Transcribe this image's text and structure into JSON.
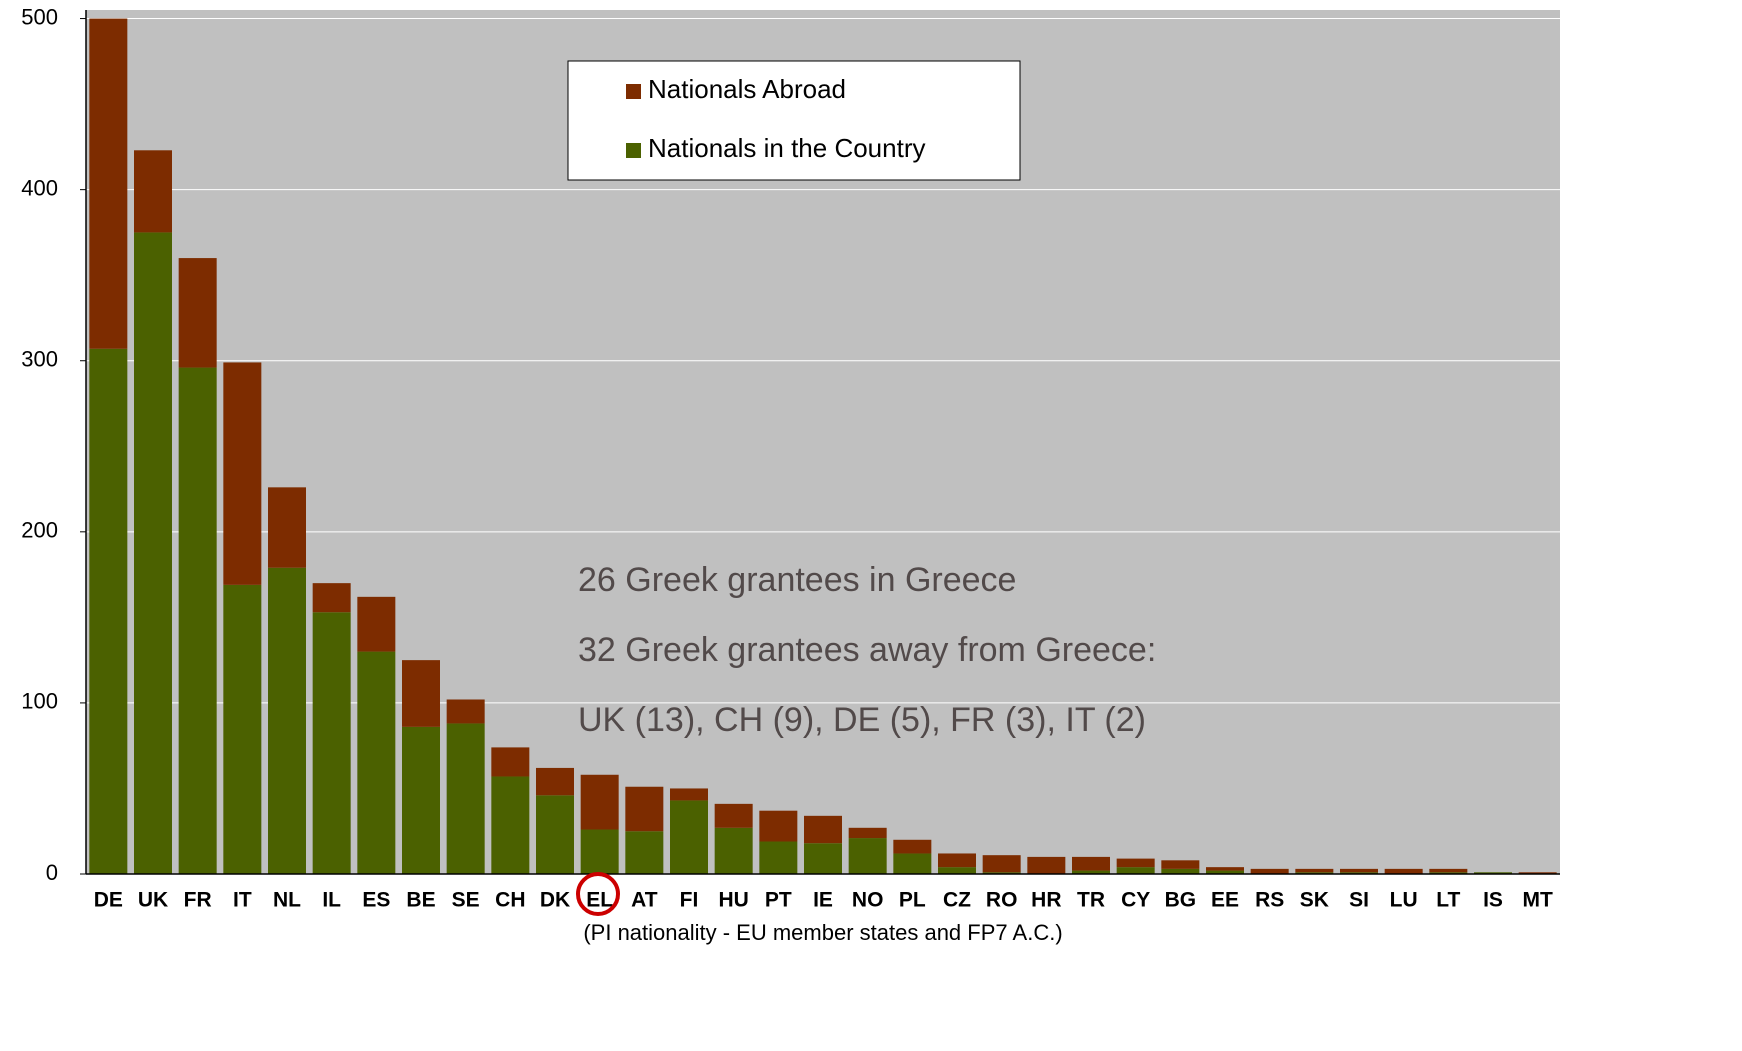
{
  "chart_data": {
    "type": "stacked_bar",
    "x_label": "(PI nationality - EU member states and FP7 A.C.)",
    "categories": [
      "DE",
      "UK",
      "FR",
      "IT",
      "NL",
      "IL",
      "ES",
      "BE",
      "SE",
      "CH",
      "DK",
      "EL",
      "AT",
      "FI",
      "HU",
      "PT",
      "IE",
      "NO",
      "PL",
      "CZ",
      "RO",
      "HR",
      "TR",
      "CY",
      "BG",
      "EE",
      "RS",
      "SK",
      "SI",
      "LU",
      "LT",
      "IS",
      "MT"
    ],
    "series": [
      {
        "name": "Nationals in the Country",
        "color": "#4b6100",
        "values": [
          307,
          375,
          296,
          169,
          179,
          153,
          130,
          86,
          88,
          57,
          46,
          26,
          25,
          43,
          27,
          19,
          18,
          21,
          12,
          4,
          1,
          0,
          2,
          4,
          3,
          2,
          0,
          1,
          1,
          0,
          1,
          1,
          0
        ]
      },
      {
        "name": "Nationals Abroad",
        "color": "#7d2c00",
        "values": [
          193,
          48,
          64,
          130,
          47,
          17,
          32,
          39,
          14,
          17,
          16,
          32,
          26,
          7,
          14,
          18,
          16,
          6,
          8,
          8,
          10,
          10,
          8,
          5,
          5,
          2,
          3,
          2,
          2,
          3,
          2,
          0,
          1
        ]
      }
    ],
    "ylim": [
      0,
      505
    ],
    "yticks": [
      0,
      100,
      200,
      300,
      400,
      500
    ],
    "grid": true,
    "annotations": [
      "26 Greek grantees in Greece",
      "32 Greek grantees away from Greece:",
      "UK (13), CH (9), DE (5), FR (3), IT (2)"
    ]
  }
}
